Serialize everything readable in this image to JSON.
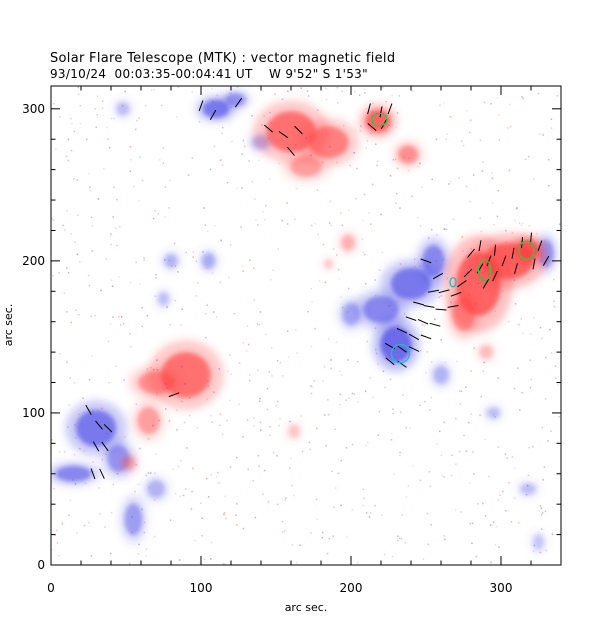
{
  "chart_data": {
    "type": "heatmap",
    "title": "Solar Flare Telescope (MTK) : vector magnetic field",
    "subtitle": {
      "date": "93/10/24",
      "time_range": "00:03:35-00:04:41 UT",
      "position": "W 9'52\"  S 1'53\""
    },
    "xlabel": "arc sec.",
    "ylabel": "arc sec.",
    "xlim": [
      0,
      340
    ],
    "ylim": [
      0,
      315
    ],
    "x_ticks": [
      0,
      100,
      200,
      300
    ],
    "y_ticks": [
      0,
      100,
      200,
      300
    ],
    "x_minor_step": 20,
    "y_minor_step": 20,
    "colors": {
      "positive_polarity": "#ff4040",
      "negative_polarity": "#4a4ae6",
      "vector": "#000000",
      "contour_green": "#22cc44",
      "contour_cyan": "#22bbcc"
    },
    "positive_regions": [
      {
        "x": 160,
        "y": 285,
        "rx": 22,
        "ry": 18,
        "strength": 0.8
      },
      {
        "x": 185,
        "y": 278,
        "rx": 18,
        "ry": 14,
        "strength": 0.7
      },
      {
        "x": 218,
        "y": 292,
        "rx": 11,
        "ry": 10,
        "strength": 0.9
      },
      {
        "x": 238,
        "y": 270,
        "rx": 9,
        "ry": 8,
        "strength": 0.6
      },
      {
        "x": 170,
        "y": 262,
        "rx": 14,
        "ry": 9,
        "strength": 0.5
      },
      {
        "x": 285,
        "y": 185,
        "rx": 20,
        "ry": 28,
        "strength": 0.9
      },
      {
        "x": 305,
        "y": 200,
        "rx": 22,
        "ry": 16,
        "strength": 0.9
      },
      {
        "x": 318,
        "y": 207,
        "rx": 10,
        "ry": 9,
        "strength": 1.0
      },
      {
        "x": 275,
        "y": 165,
        "rx": 10,
        "ry": 15,
        "strength": 0.6
      },
      {
        "x": 90,
        "y": 125,
        "rx": 22,
        "ry": 20,
        "strength": 0.8
      },
      {
        "x": 70,
        "y": 120,
        "rx": 16,
        "ry": 10,
        "strength": 0.6
      },
      {
        "x": 65,
        "y": 95,
        "rx": 10,
        "ry": 12,
        "strength": 0.5
      },
      {
        "x": 52,
        "y": 67,
        "rx": 6,
        "ry": 6,
        "strength": 0.4
      },
      {
        "x": 198,
        "y": 212,
        "rx": 6,
        "ry": 7,
        "strength": 0.4
      },
      {
        "x": 185,
        "y": 198,
        "rx": 4,
        "ry": 4,
        "strength": 0.3
      },
      {
        "x": 162,
        "y": 88,
        "rx": 5,
        "ry": 6,
        "strength": 0.3
      },
      {
        "x": 290,
        "y": 140,
        "rx": 6,
        "ry": 6,
        "strength": 0.35
      }
    ],
    "negative_regions": [
      {
        "x": 110,
        "y": 300,
        "rx": 12,
        "ry": 8,
        "strength": 0.8
      },
      {
        "x": 123,
        "y": 306,
        "rx": 9,
        "ry": 6,
        "strength": 0.6
      },
      {
        "x": 240,
        "y": 185,
        "rx": 18,
        "ry": 14,
        "strength": 0.8
      },
      {
        "x": 220,
        "y": 168,
        "rx": 16,
        "ry": 12,
        "strength": 0.7
      },
      {
        "x": 230,
        "y": 145,
        "rx": 14,
        "ry": 16,
        "strength": 0.9
      },
      {
        "x": 255,
        "y": 200,
        "rx": 10,
        "ry": 14,
        "strength": 0.7
      },
      {
        "x": 200,
        "y": 165,
        "rx": 8,
        "ry": 10,
        "strength": 0.5
      },
      {
        "x": 330,
        "y": 205,
        "rx": 7,
        "ry": 12,
        "strength": 0.6
      },
      {
        "x": 30,
        "y": 90,
        "rx": 18,
        "ry": 16,
        "strength": 0.8
      },
      {
        "x": 15,
        "y": 60,
        "rx": 16,
        "ry": 7,
        "strength": 0.7
      },
      {
        "x": 45,
        "y": 70,
        "rx": 10,
        "ry": 12,
        "strength": 0.6
      },
      {
        "x": 55,
        "y": 30,
        "rx": 8,
        "ry": 14,
        "strength": 0.55
      },
      {
        "x": 70,
        "y": 50,
        "rx": 8,
        "ry": 8,
        "strength": 0.4
      },
      {
        "x": 140,
        "y": 278,
        "rx": 8,
        "ry": 6,
        "strength": 0.4
      },
      {
        "x": 105,
        "y": 200,
        "rx": 6,
        "ry": 7,
        "strength": 0.45
      },
      {
        "x": 80,
        "y": 200,
        "rx": 6,
        "ry": 6,
        "strength": 0.4
      },
      {
        "x": 75,
        "y": 175,
        "rx": 5,
        "ry": 6,
        "strength": 0.35
      },
      {
        "x": 260,
        "y": 125,
        "rx": 7,
        "ry": 8,
        "strength": 0.4
      },
      {
        "x": 295,
        "y": 100,
        "rx": 6,
        "ry": 5,
        "strength": 0.35
      },
      {
        "x": 318,
        "y": 50,
        "rx": 7,
        "ry": 5,
        "strength": 0.35
      },
      {
        "x": 48,
        "y": 300,
        "rx": 6,
        "ry": 6,
        "strength": 0.35
      },
      {
        "x": 325,
        "y": 15,
        "rx": 5,
        "ry": 7,
        "strength": 0.3
      }
    ],
    "vectors": [
      {
        "x": 100,
        "y": 302,
        "angle": 70
      },
      {
        "x": 108,
        "y": 296,
        "angle": 60
      },
      {
        "x": 125,
        "y": 304,
        "angle": 55
      },
      {
        "x": 145,
        "y": 287,
        "angle": -40
      },
      {
        "x": 155,
        "y": 283,
        "angle": -35
      },
      {
        "x": 165,
        "y": 286,
        "angle": -45
      },
      {
        "x": 160,
        "y": 272,
        "angle": -50
      },
      {
        "x": 212,
        "y": 300,
        "angle": 75
      },
      {
        "x": 220,
        "y": 298,
        "angle": 80
      },
      {
        "x": 226,
        "y": 300,
        "angle": 70
      },
      {
        "x": 214,
        "y": 288,
        "angle": -40
      },
      {
        "x": 222,
        "y": 290,
        "angle": 60
      },
      {
        "x": 250,
        "y": 200,
        "angle": -20
      },
      {
        "x": 258,
        "y": 190,
        "angle": 30
      },
      {
        "x": 255,
        "y": 180,
        "angle": 10
      },
      {
        "x": 262,
        "y": 180,
        "angle": 15
      },
      {
        "x": 270,
        "y": 178,
        "angle": 20
      },
      {
        "x": 245,
        "y": 172,
        "angle": -15
      },
      {
        "x": 252,
        "y": 170,
        "angle": -10
      },
      {
        "x": 260,
        "y": 168,
        "angle": -5
      },
      {
        "x": 268,
        "y": 170,
        "angle": 10
      },
      {
        "x": 240,
        "y": 162,
        "angle": -20
      },
      {
        "x": 248,
        "y": 160,
        "angle": -25
      },
      {
        "x": 256,
        "y": 158,
        "angle": -15
      },
      {
        "x": 234,
        "y": 154,
        "angle": -25
      },
      {
        "x": 242,
        "y": 150,
        "angle": -30
      },
      {
        "x": 250,
        "y": 150,
        "angle": -20
      },
      {
        "x": 226,
        "y": 144,
        "angle": -30
      },
      {
        "x": 234,
        "y": 142,
        "angle": -35
      },
      {
        "x": 242,
        "y": 142,
        "angle": -25
      },
      {
        "x": 226,
        "y": 134,
        "angle": -40
      },
      {
        "x": 234,
        "y": 132,
        "angle": -35
      },
      {
        "x": 278,
        "y": 192,
        "angle": 45
      },
      {
        "x": 286,
        "y": 195,
        "angle": 60
      },
      {
        "x": 292,
        "y": 200,
        "angle": 70
      },
      {
        "x": 280,
        "y": 205,
        "angle": 50
      },
      {
        "x": 286,
        "y": 210,
        "angle": 80
      },
      {
        "x": 296,
        "y": 207,
        "angle": 85
      },
      {
        "x": 302,
        "y": 200,
        "angle": 70
      },
      {
        "x": 308,
        "y": 205,
        "angle": 80
      },
      {
        "x": 314,
        "y": 212,
        "angle": 85
      },
      {
        "x": 320,
        "y": 215,
        "angle": 85
      },
      {
        "x": 326,
        "y": 210,
        "angle": 70
      },
      {
        "x": 330,
        "y": 200,
        "angle": 60
      },
      {
        "x": 310,
        "y": 195,
        "angle": 75
      },
      {
        "x": 322,
        "y": 198,
        "angle": 80
      },
      {
        "x": 290,
        "y": 185,
        "angle": 60
      },
      {
        "x": 296,
        "y": 190,
        "angle": 65
      },
      {
        "x": 274,
        "y": 185,
        "angle": 35
      },
      {
        "x": 25,
        "y": 102,
        "angle": -60
      },
      {
        "x": 32,
        "y": 92,
        "angle": -50
      },
      {
        "x": 38,
        "y": 90,
        "angle": -45
      },
      {
        "x": 30,
        "y": 78,
        "angle": -60
      },
      {
        "x": 36,
        "y": 78,
        "angle": -55
      },
      {
        "x": 28,
        "y": 60,
        "angle": -70
      },
      {
        "x": 34,
        "y": 60,
        "angle": -65
      },
      {
        "x": 82,
        "y": 112,
        "angle": 20
      }
    ],
    "contours": [
      {
        "x": 219,
        "y": 293,
        "rx": 5,
        "ry": 4,
        "color": "green"
      },
      {
        "x": 289,
        "y": 194,
        "rx": 4,
        "ry": 7,
        "color": "green"
      },
      {
        "x": 317,
        "y": 207,
        "rx": 5,
        "ry": 6,
        "color": "green"
      },
      {
        "x": 268,
        "y": 186,
        "rx": 2,
        "ry": 3,
        "color": "cyan"
      },
      {
        "x": 233,
        "y": 139,
        "rx": 6,
        "ry": 6,
        "color": "cyan"
      }
    ]
  }
}
